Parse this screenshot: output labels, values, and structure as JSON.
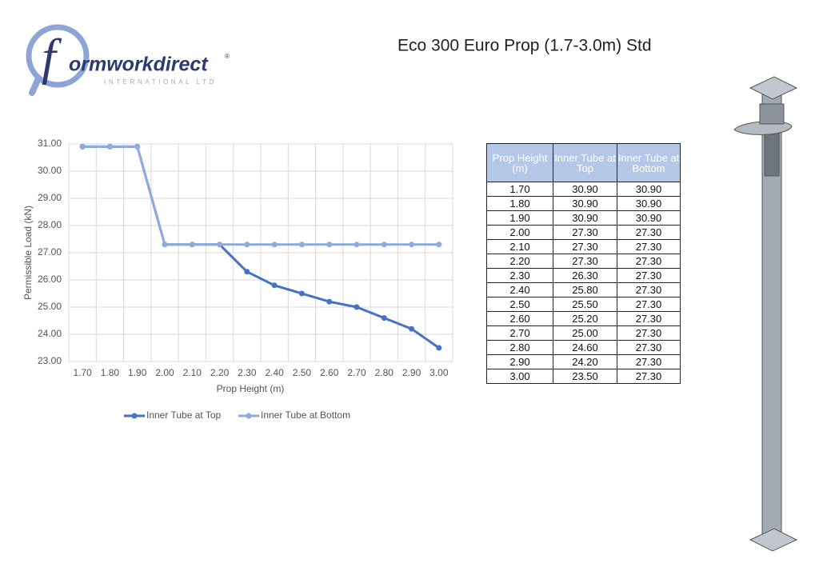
{
  "header": {
    "logo": {
      "letter": "f",
      "name": "ormworkdirect",
      "mark": "®",
      "subtitle": "INTERNATIONAL LTD"
    },
    "title": "Eco 300 Euro Prop (1.7-3.0m) Std"
  },
  "chart_data": {
    "type": "line",
    "x_label": "Prop Height (m)",
    "y_label": "Permissible Load (kN)",
    "categories": [
      "1.70",
      "1.80",
      "1.90",
      "2.00",
      "2.10",
      "2.20",
      "2.30",
      "2.40",
      "2.50",
      "2.60",
      "2.70",
      "2.80",
      "2.90",
      "3.00"
    ],
    "series": [
      {
        "name": "Inner Tube at Top",
        "color": "#4472c4",
        "values": [
          30.9,
          30.9,
          30.9,
          27.3,
          27.3,
          27.3,
          26.3,
          25.8,
          25.5,
          25.2,
          25.0,
          24.6,
          24.2,
          23.5
        ]
      },
      {
        "name": "Inner Tube at Bottom",
        "color": "#8faadc",
        "values": [
          30.9,
          30.9,
          30.9,
          27.3,
          27.3,
          27.3,
          27.3,
          27.3,
          27.3,
          27.3,
          27.3,
          27.3,
          27.3,
          27.3
        ]
      }
    ],
    "ylim": [
      23,
      31
    ],
    "yticks": [
      {
        "value": 23,
        "label": "23.00"
      },
      {
        "value": 24,
        "label": "24.00"
      },
      {
        "value": 25,
        "label": "25.00"
      },
      {
        "value": 26,
        "label": "26.00"
      },
      {
        "value": 27,
        "label": "27.00"
      },
      {
        "value": 28,
        "label": "28.00"
      },
      {
        "value": 29,
        "label": "29.00"
      },
      {
        "value": 30,
        "label": "30.00"
      },
      {
        "value": 31,
        "label": "31.00"
      }
    ],
    "grid": true,
    "legend": "bottom"
  },
  "table": {
    "header": [
      "Prop Height (m)",
      "Inner Tube at Top",
      "Inner Tube at Bottom"
    ],
    "rows": [
      [
        "1.70",
        "30.90",
        "30.90"
      ],
      [
        "1.80",
        "30.90",
        "30.90"
      ],
      [
        "1.90",
        "30.90",
        "30.90"
      ],
      [
        "2.00",
        "27.30",
        "27.30"
      ],
      [
        "2.10",
        "27.30",
        "27.30"
      ],
      [
        "2.20",
        "27.30",
        "27.30"
      ],
      [
        "2.30",
        "26.30",
        "27.30"
      ],
      [
        "2.40",
        "25.80",
        "27.30"
      ],
      [
        "2.50",
        "25.50",
        "27.30"
      ],
      [
        "2.60",
        "25.20",
        "27.30"
      ],
      [
        "2.70",
        "25.00",
        "27.30"
      ],
      [
        "2.80",
        "24.60",
        "27.30"
      ],
      [
        "2.90",
        "24.20",
        "27.30"
      ],
      [
        "3.00",
        "23.50",
        "27.30"
      ]
    ]
  }
}
